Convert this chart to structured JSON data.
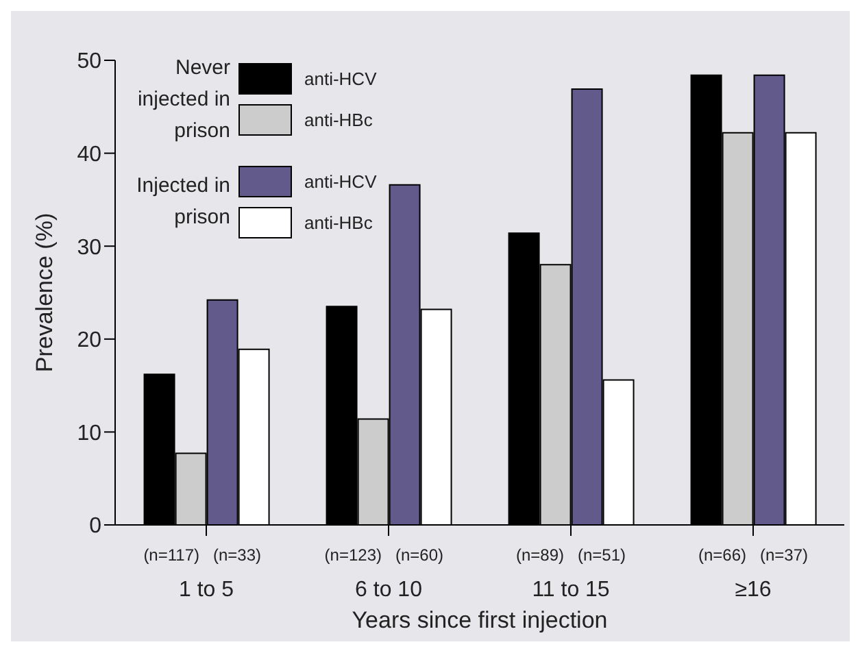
{
  "chart_data": {
    "type": "bar",
    "xlabel": "Years since first injection",
    "ylabel": "Prevalence (%)",
    "categories": [
      "1 to 5",
      "6 to 10",
      "11 to 15",
      "≥16"
    ],
    "series": [
      {
        "name": "anti-HCV",
        "color": "#000000",
        "values": [
          16.2,
          23.5,
          31.4,
          48.4
        ]
      },
      {
        "name": "anti-HBc",
        "color": "#cccccc",
        "values": [
          7.7,
          11.4,
          28.0,
          42.2
        ]
      },
      {
        "name": "anti-HCV",
        "color": "#635a8c",
        "values": [
          24.2,
          36.6,
          46.9,
          48.4
        ]
      },
      {
        "name": "anti-HBc",
        "color": "#ffffff",
        "values": [
          18.9,
          23.2,
          15.6,
          42.2
        ]
      }
    ],
    "ylim": [
      0,
      50
    ],
    "yticks": [
      0,
      10,
      20,
      30,
      40,
      50
    ],
    "grid": false,
    "legend": "top left",
    "annotations": [
      "Never injected in prison",
      "Injected in prison",
      "(n=117)",
      "(n=33)",
      "(n=123)",
      "(n=60)",
      "(n=89)",
      "(n=51)",
      "(n=66)",
      "(n=37)"
    ]
  }
}
